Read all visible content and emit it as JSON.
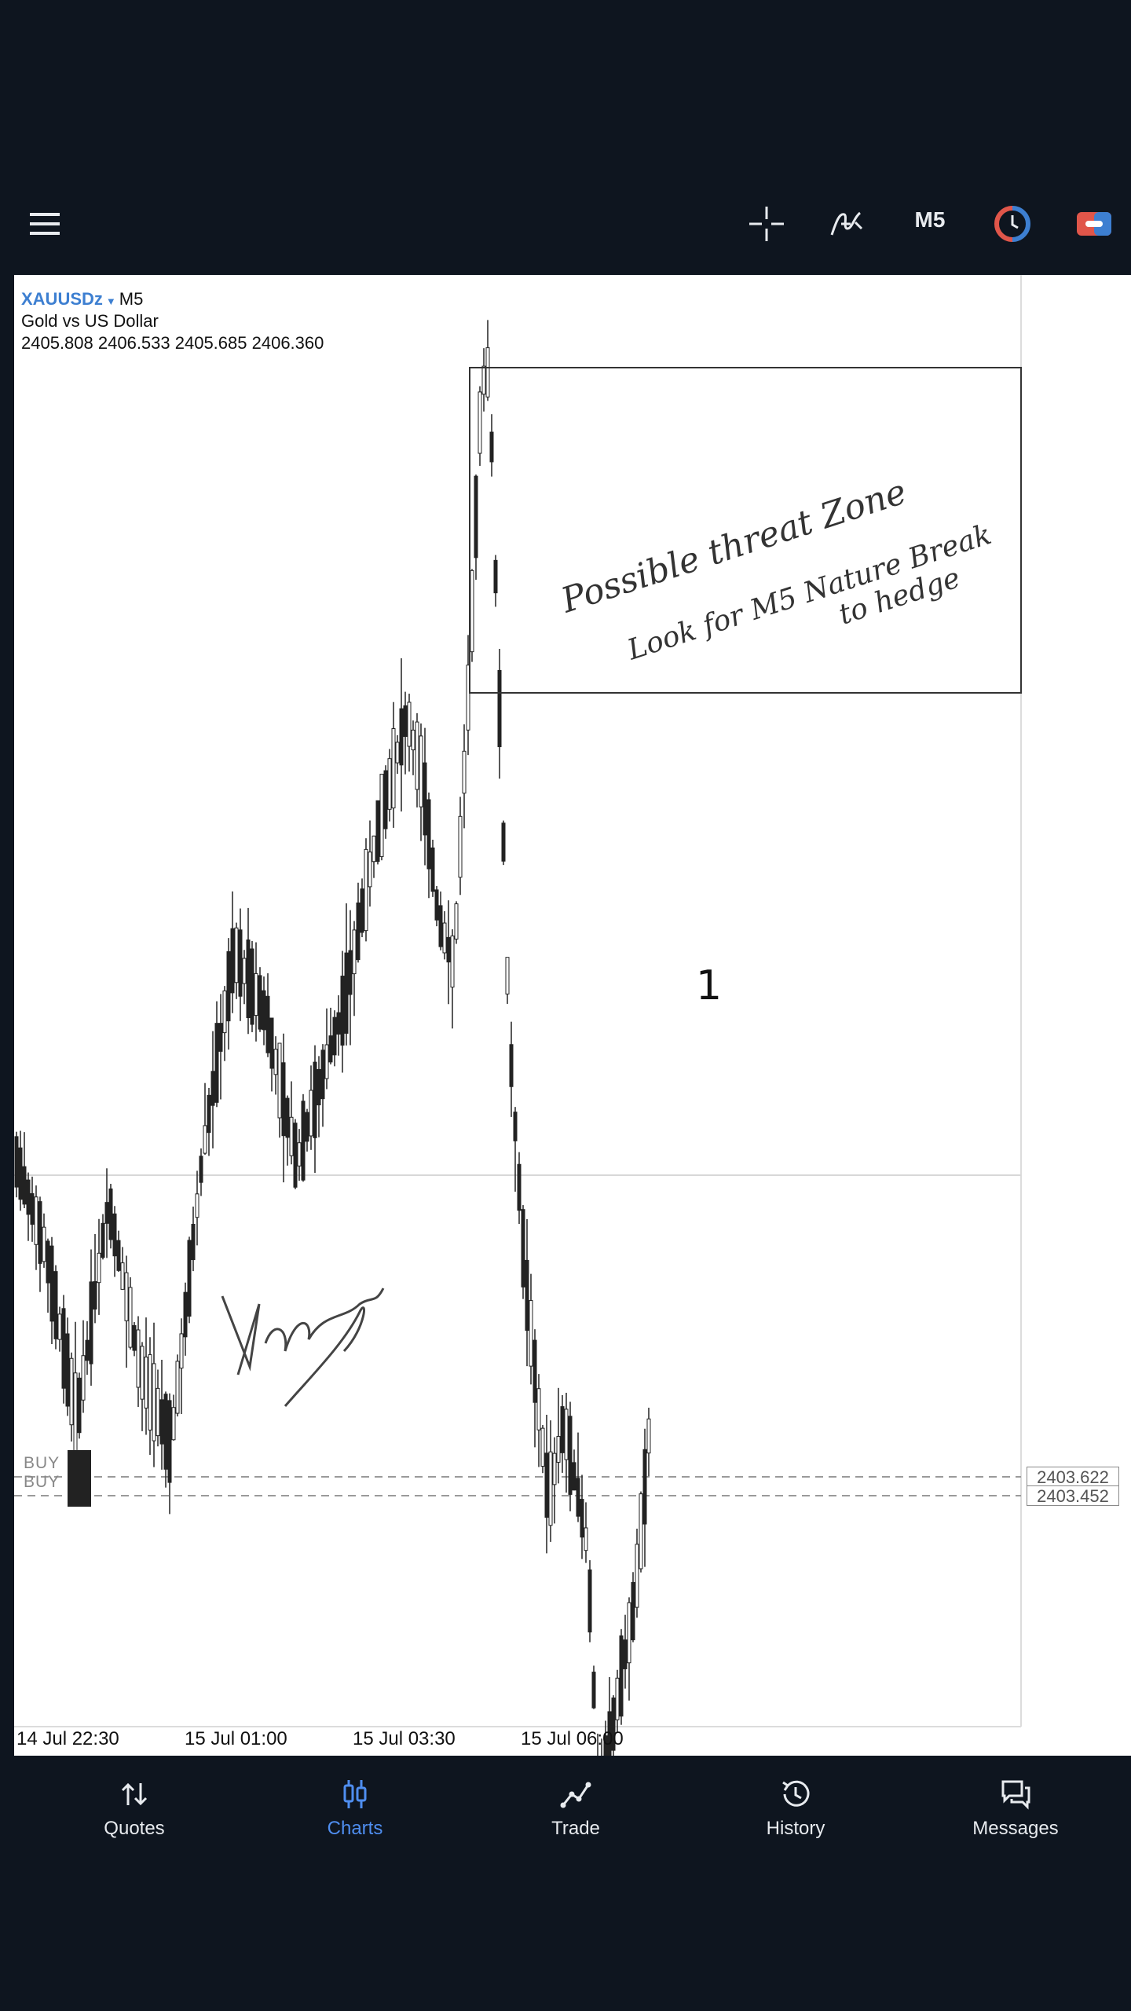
{
  "toolbar": {
    "menu_icon": "hamburger-menu-icon",
    "crosshair_icon": "crosshair-icon",
    "indicator_icon": "indicator-f-icon",
    "timeframe": "M5",
    "objects_icon": "clock-objects-icon",
    "trade_icon": "one-click-trade-icon"
  },
  "chart": {
    "symbol": "XAUUSDz",
    "timeframe": "M5",
    "description": "Gold vs US Dollar",
    "ohlc": "2405.808 2406.533 2405.685 2406.360",
    "annotation_number": "1",
    "zone_note_line1": "Possible threat Zone",
    "zone_note_line2": "Look for M5 Nature Break",
    "zone_note_line3": "to hedge",
    "buy_label_1": "BUY",
    "buy_label_2": "BUY",
    "price_tag_1": "2403.622",
    "price_tag_2": "2403.452",
    "x_ticks": [
      "14 Jul 22:30",
      "15 Jul 01:00",
      "15 Jul 03:30",
      "15 Jul 06:00"
    ]
  },
  "bottom_nav": {
    "items": [
      {
        "label": "Quotes",
        "icon": "sort-arrows-icon"
      },
      {
        "label": "Charts",
        "icon": "candles-icon",
        "active": true
      },
      {
        "label": "Trade",
        "icon": "trade-line-icon"
      },
      {
        "label": "History",
        "icon": "history-clock-icon"
      },
      {
        "label": "Messages",
        "icon": "chat-bubbles-icon"
      }
    ]
  },
  "colors": {
    "background": "#0e151f",
    "accent": "#4f8ef0",
    "symbol": "#3d7fd1",
    "chart_background": "#ffffff"
  }
}
